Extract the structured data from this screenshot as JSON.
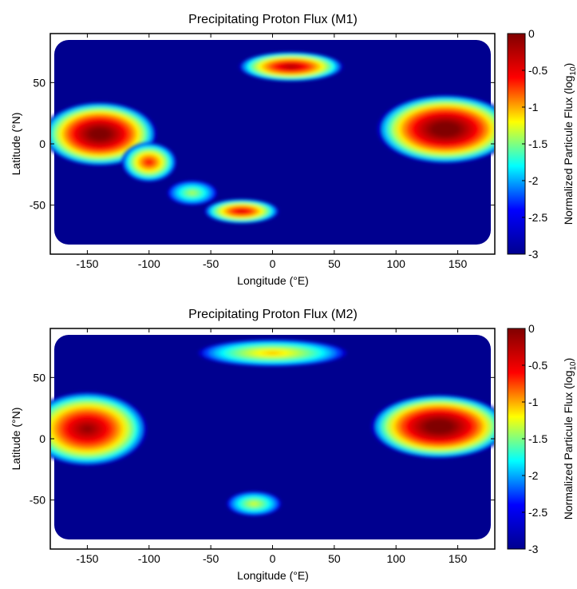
{
  "colors": {
    "colormap": [
      "#00008f",
      "#0000ff",
      "#00ffff",
      "#ffff00",
      "#ff0000",
      "#800000"
    ],
    "background_ocean": "#27348b"
  },
  "chart_data": [
    {
      "type": "heatmap",
      "title": "Precipitating Proton Flux (M1)",
      "xlabel": "Longitude (°E)",
      "ylabel": "Latitude (°N)",
      "xlim": [
        -180,
        180
      ],
      "ylim": [
        -90,
        90
      ],
      "xticks": [
        -150,
        -100,
        -50,
        0,
        50,
        100,
        150
      ],
      "yticks": [
        50,
        0,
        -50
      ],
      "colorbar": {
        "label": "Normalized Particule Flux (log",
        "label_subscript": "10",
        "label_close": ")",
        "range": [
          -3,
          0
        ],
        "ticks": [
          "0",
          "-0.5",
          "-1",
          "-1.5",
          "-2",
          "-2.5",
          "-3"
        ]
      },
      "background_value": -3,
      "regions": [
        {
          "lon": -140,
          "lat": 8,
          "lon_halfwidth": 46,
          "lat_halfwidth": 26,
          "peak": -0.05
        },
        {
          "lon": -100,
          "lat": -15,
          "lon_halfwidth": 22,
          "lat_halfwidth": 16,
          "peak": -0.9
        },
        {
          "lon": -65,
          "lat": -40,
          "lon_halfwidth": 20,
          "lat_halfwidth": 10,
          "peak": -1.7
        },
        {
          "lon": -25,
          "lat": -55,
          "lon_halfwidth": 30,
          "lat_halfwidth": 10,
          "peak": -0.7
        },
        {
          "lon": 15,
          "lat": 63,
          "lon_halfwidth": 42,
          "lat_halfwidth": 12,
          "peak": -0.5
        },
        {
          "lon": 140,
          "lat": 12,
          "lon_halfwidth": 55,
          "lat_halfwidth": 28,
          "peak": 0
        }
      ]
    },
    {
      "type": "heatmap",
      "title": "Precipitating Proton Flux (M2)",
      "xlabel": "Longitude (°E)",
      "ylabel": "Latitude (°N)",
      "xlim": [
        -180,
        180
      ],
      "ylim": [
        -90,
        90
      ],
      "xticks": [
        -150,
        -100,
        -50,
        0,
        50,
        100,
        150
      ],
      "yticks": [
        50,
        0,
        -50
      ],
      "colorbar": {
        "label": "Normalized Particule Flux (log",
        "label_subscript": "10",
        "label_close": ")",
        "range": [
          -3,
          0
        ],
        "ticks": [
          "0",
          "-0.5",
          "-1",
          "-1.5",
          "-2",
          "-2.5",
          "-3"
        ]
      },
      "background_value": -3,
      "regions": [
        {
          "lon": -150,
          "lat": 8,
          "lon_halfwidth": 48,
          "lat_halfwidth": 30,
          "peak": -0.35
        },
        {
          "lon": 0,
          "lat": 70,
          "lon_halfwidth": 60,
          "lat_halfwidth": 11,
          "peak": -1.35
        },
        {
          "lon": -15,
          "lat": -53,
          "lon_halfwidth": 22,
          "lat_halfwidth": 10,
          "peak": -1.6
        },
        {
          "lon": 135,
          "lat": 10,
          "lon_halfwidth": 55,
          "lat_halfwidth": 26,
          "peak": 0
        }
      ]
    }
  ]
}
